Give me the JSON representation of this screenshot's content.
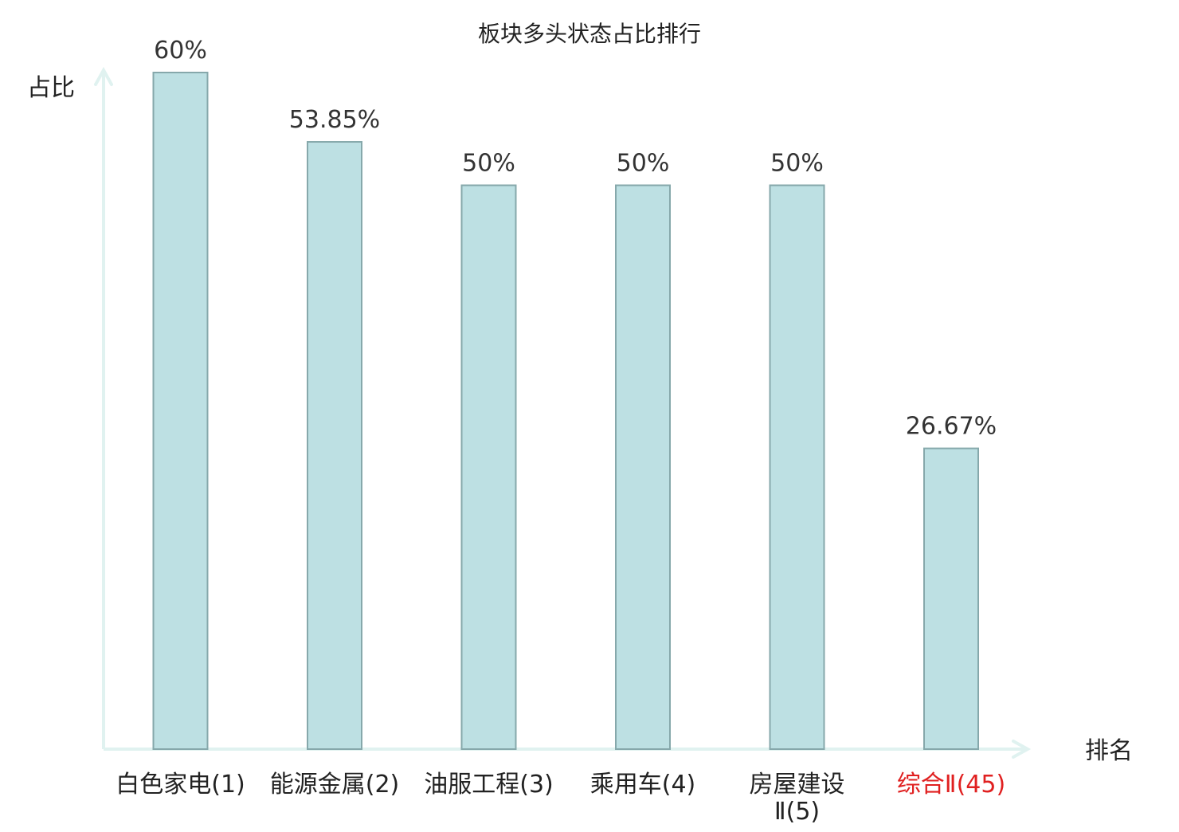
{
  "chart_data": {
    "type": "bar",
    "title": "板块多头状态占比排行",
    "xlabel": "排名",
    "ylabel": "占比",
    "ylim": [
      0,
      60
    ],
    "categories": [
      [
        "白色家电(1)"
      ],
      [
        "能源金属(2)"
      ],
      [
        "油服工程(3)"
      ],
      [
        "乘用车(4)"
      ],
      [
        "房屋建设",
        "Ⅱ(5)"
      ],
      [
        "综合Ⅱ(45)"
      ]
    ],
    "values": [
      60,
      53.85,
      50,
      50,
      50,
      26.67
    ],
    "value_labels": [
      "60%",
      "53.85%",
      "50%",
      "50%",
      "50%",
      "26.67%"
    ],
    "highlight_index": 5,
    "grid": false,
    "colors": {
      "bar_fill": "#bde0e3",
      "bar_stroke": "#86a8ab",
      "axis": "#e0f2f0",
      "text": "#222222",
      "highlight_text": "#e02020"
    }
  }
}
